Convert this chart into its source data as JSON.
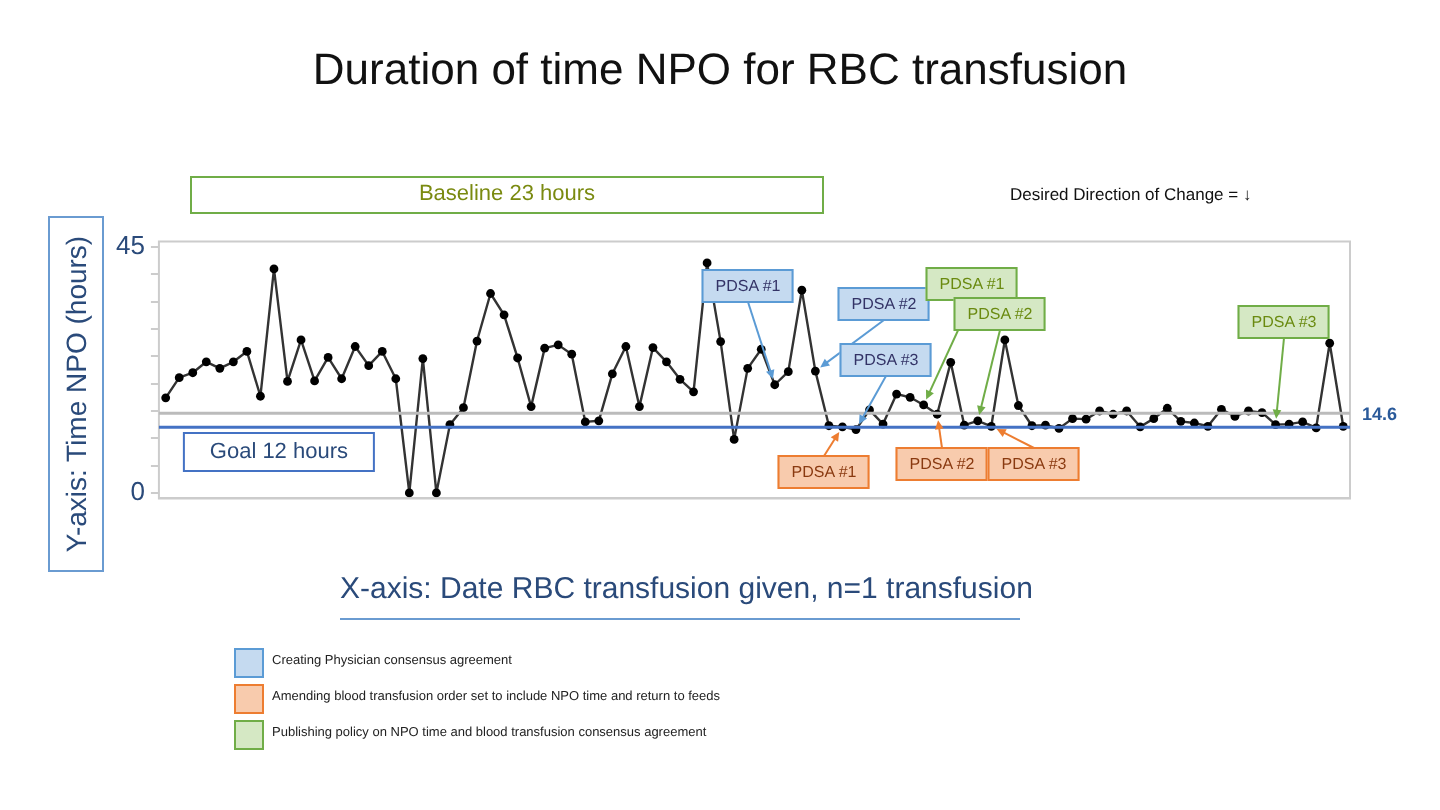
{
  "chart_data": {
    "type": "line",
    "title": "Duration of time NPO for RBC transfusion",
    "xlabel": "X-axis:  Date RBC transfusion given, n=1 transfusion",
    "ylabel": "Y-axis:  Time NPO (hours)",
    "categories": [
      null,
      null,
      null,
      null,
      null,
      null,
      null,
      null,
      null,
      null,
      null,
      null,
      null,
      null,
      null,
      null,
      null,
      null,
      null,
      null,
      null,
      null,
      null,
      null,
      null,
      null,
      null,
      null,
      null,
      null,
      null,
      null,
      null,
      null,
      null,
      null,
      null,
      null,
      null,
      null,
      null,
      null,
      null,
      null,
      null,
      null,
      null,
      null,
      null,
      null,
      null,
      null,
      null,
      null,
      null,
      null,
      null,
      null,
      null,
      null,
      null,
      null,
      null,
      null,
      null,
      null,
      null,
      null,
      null,
      null,
      null,
      null,
      null,
      null,
      null,
      null,
      null,
      null,
      null,
      null,
      null,
      null,
      null,
      null,
      null,
      null,
      null,
      null
    ],
    "series": [
      {
        "color": "#333333",
        "values": [
          17.4,
          21.1,
          22.0,
          24.0,
          22.8,
          24.0,
          25.9,
          17.7,
          41.0,
          20.4,
          28.0,
          20.5,
          24.8,
          20.9,
          26.8,
          23.3,
          25.9,
          20.9,
          0,
          24.6,
          0,
          12.5,
          15.6,
          27.8,
          36.5,
          32.6,
          24.7,
          15.8,
          26.5,
          27.1,
          25.4,
          13.0,
          13.2,
          21.8,
          26.8,
          15.8,
          26.6,
          24.0,
          20.8,
          18.5,
          42.1,
          27.7,
          9.8,
          22.8,
          26.3,
          19.8,
          22.2,
          37.1,
          22.3,
          12.3,
          12.1,
          11.6,
          15.2,
          12.6,
          18.1,
          17.5,
          16.1,
          14.4,
          23.9,
          12.4,
          13.2,
          12.2,
          28.0,
          16.0,
          12.3,
          12.4,
          11.8,
          13.6,
          13.5,
          15.0,
          14.4,
          15.0,
          12.1,
          13.6,
          15.5,
          13.1,
          12.8,
          12.2,
          15.3,
          14.0,
          15.0,
          14.7,
          12.5,
          12.6,
          13.0,
          11.9,
          27.4,
          12.2
        ]
      }
    ],
    "ylim": [
      -1,
      46
    ],
    "yticks": [
      0,
      {
        "value": 5,
        "label": null
      },
      {
        "value": 10,
        "label": null
      },
      {
        "value": 15,
        "label": null
      },
      {
        "value": 20,
        "label": null
      },
      {
        "value": 25,
        "label": null
      },
      {
        "value": 30,
        "label": null
      },
      {
        "value": 35,
        "label": null
      },
      {
        "value": 40,
        "label": null
      },
      45
    ],
    "tick_labels": "y",
    "marker": "circle",
    "line_style": "solid",
    "grid": false,
    "legend": false,
    "ref_lines": [
      {
        "axis": "y",
        "value": 12,
        "label": "Goal 12 hours",
        "color": "#4472c4"
      },
      {
        "axis": "y",
        "value": 14.6,
        "label": "14.6",
        "color": "#bbbbbb"
      }
    ],
    "annotations": [
      "Baseline 23 hours",
      "Desired Direction of Change = ↓",
      "PDSA #1",
      "PDSA #2",
      "PDSA #3",
      "PDSA #1",
      "PDSA #2",
      "PDSA #3",
      "PDSA #1",
      "PDSA #2",
      "PDSA #3",
      "Creating Physician consensus agreement",
      "Amending blood transfusion order set to include NPO time and return to feeds",
      "Publishing policy on NPO time and blood transfusion consensus agreement"
    ]
  }
}
